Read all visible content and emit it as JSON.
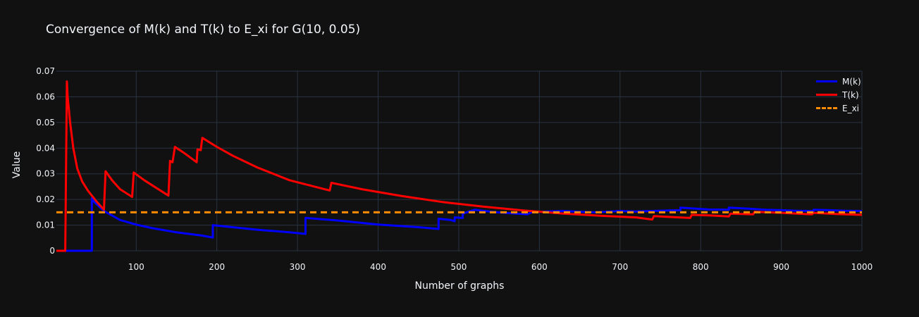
{
  "chart_data": {
    "type": "line",
    "title": "Convergence of M(k) and T(k) to E_xi for G(10, 0.05)",
    "xlabel": "Number of graphs",
    "ylabel": "Value",
    "xlim": [
      1,
      1000
    ],
    "ylim": [
      0,
      0.07
    ],
    "x_ticks": [
      100,
      200,
      300,
      400,
      500,
      600,
      700,
      800,
      900,
      1000
    ],
    "y_ticks": [
      0,
      0.01,
      0.02,
      0.03,
      0.04,
      0.05,
      0.06,
      0.07
    ],
    "y_tick_labels": [
      "0",
      "0.01",
      "0.02",
      "0.03",
      "0.04",
      "0.05",
      "0.06",
      "0.07"
    ],
    "grid": true,
    "legend_position": "top-right",
    "series": [
      {
        "name": "M(k)",
        "color": "#0000ff",
        "style": "solid",
        "x": [
          1,
          45,
          45,
          48,
          60,
          80,
          100,
          120,
          150,
          180,
          195,
          195,
          210,
          250,
          290,
          310,
          310,
          350,
          400,
          450,
          475,
          475,
          490,
          495,
          495,
          505,
          505,
          520,
          540,
          560,
          585,
          590,
          610,
          630,
          650,
          670,
          700,
          720,
          740,
          760,
          775,
          775,
          790,
          810,
          835,
          835,
          860,
          880,
          900,
          920,
          940,
          940,
          960,
          980,
          1000
        ],
        "y": [
          0,
          0,
          0.0205,
          0.019,
          0.0155,
          0.012,
          0.0102,
          0.0088,
          0.0072,
          0.006,
          0.0052,
          0.01,
          0.0095,
          0.0082,
          0.0072,
          0.0066,
          0.0128,
          0.0118,
          0.0102,
          0.0092,
          0.0085,
          0.0125,
          0.012,
          0.0115,
          0.013,
          0.0128,
          0.0145,
          0.016,
          0.0152,
          0.0147,
          0.0142,
          0.015,
          0.0153,
          0.0155,
          0.0152,
          0.015,
          0.0155,
          0.0153,
          0.0155,
          0.0157,
          0.0158,
          0.0168,
          0.0165,
          0.0161,
          0.016,
          0.0168,
          0.0164,
          0.016,
          0.0158,
          0.0156,
          0.0155,
          0.016,
          0.0158,
          0.0156,
          0.0155
        ]
      },
      {
        "name": "T(k)",
        "color": "#ff0000",
        "style": "solid",
        "x": [
          1,
          12,
          14,
          15,
          18,
          22,
          27,
          33,
          40,
          50,
          60,
          62,
          70,
          80,
          95,
          97,
          110,
          125,
          140,
          142,
          145,
          148,
          160,
          175,
          176,
          180,
          182,
          200,
          220,
          250,
          290,
          340,
          342,
          380,
          430,
          480,
          530,
          580,
          630,
          680,
          720,
          740,
          742,
          760,
          787,
          789,
          810,
          835,
          837,
          865,
          867,
          900,
          938,
          940,
          970,
          1000
        ],
        "y": [
          0,
          0,
          0.066,
          0.06,
          0.05,
          0.04,
          0.032,
          0.027,
          0.0235,
          0.0195,
          0.016,
          0.031,
          0.0275,
          0.024,
          0.021,
          0.0305,
          0.0275,
          0.0245,
          0.0215,
          0.035,
          0.0345,
          0.0405,
          0.038,
          0.0345,
          0.0395,
          0.0392,
          0.044,
          0.0405,
          0.037,
          0.0325,
          0.0275,
          0.0235,
          0.0265,
          0.024,
          0.0213,
          0.019,
          0.0172,
          0.0157,
          0.0145,
          0.0136,
          0.013,
          0.0122,
          0.0135,
          0.0132,
          0.0128,
          0.014,
          0.0138,
          0.0134,
          0.0145,
          0.0142,
          0.0152,
          0.0148,
          0.0142,
          0.0148,
          0.0143,
          0.014
        ]
      },
      {
        "name": "E_xi",
        "color": "#ff8c00",
        "style": "dash",
        "x": [
          1,
          1000
        ],
        "y": [
          0.015,
          0.015
        ]
      }
    ]
  }
}
